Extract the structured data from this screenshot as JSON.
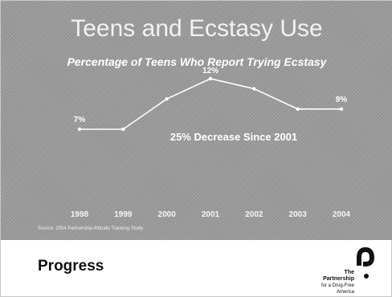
{
  "slide": {
    "title": "Teens and Ecstasy Use",
    "subtitle": "Percentage of Teens Who Report Trying Ecstasy",
    "annotation": "25% Decrease Since 2001",
    "source": "Source: 2004 Partnership Attitude Tracking Study",
    "footer_title": "Progress",
    "logo": {
      "line1": "The Partnership",
      "line2": "for a Drug-Free",
      "line3": "America"
    }
  },
  "chart_data": {
    "type": "line",
    "title": "Teens and Ecstasy Use",
    "subtitle": "Percentage of Teens Who Report Trying Ecstasy",
    "categories": [
      "1998",
      "1999",
      "2000",
      "2001",
      "2002",
      "2003",
      "2004"
    ],
    "series": [
      {
        "values": [
          7,
          7,
          10,
          12,
          11,
          9,
          9
        ]
      }
    ],
    "data_labels": [
      {
        "category": "1998",
        "text": "7%"
      },
      {
        "category": "2001",
        "text": "12%"
      },
      {
        "category": "2004",
        "text": "9%"
      }
    ],
    "annotation": "25% Decrease Since 2001",
    "ylim": [
      0,
      14
    ],
    "grid": false,
    "legend": "none",
    "line_color": "#ffffff"
  }
}
